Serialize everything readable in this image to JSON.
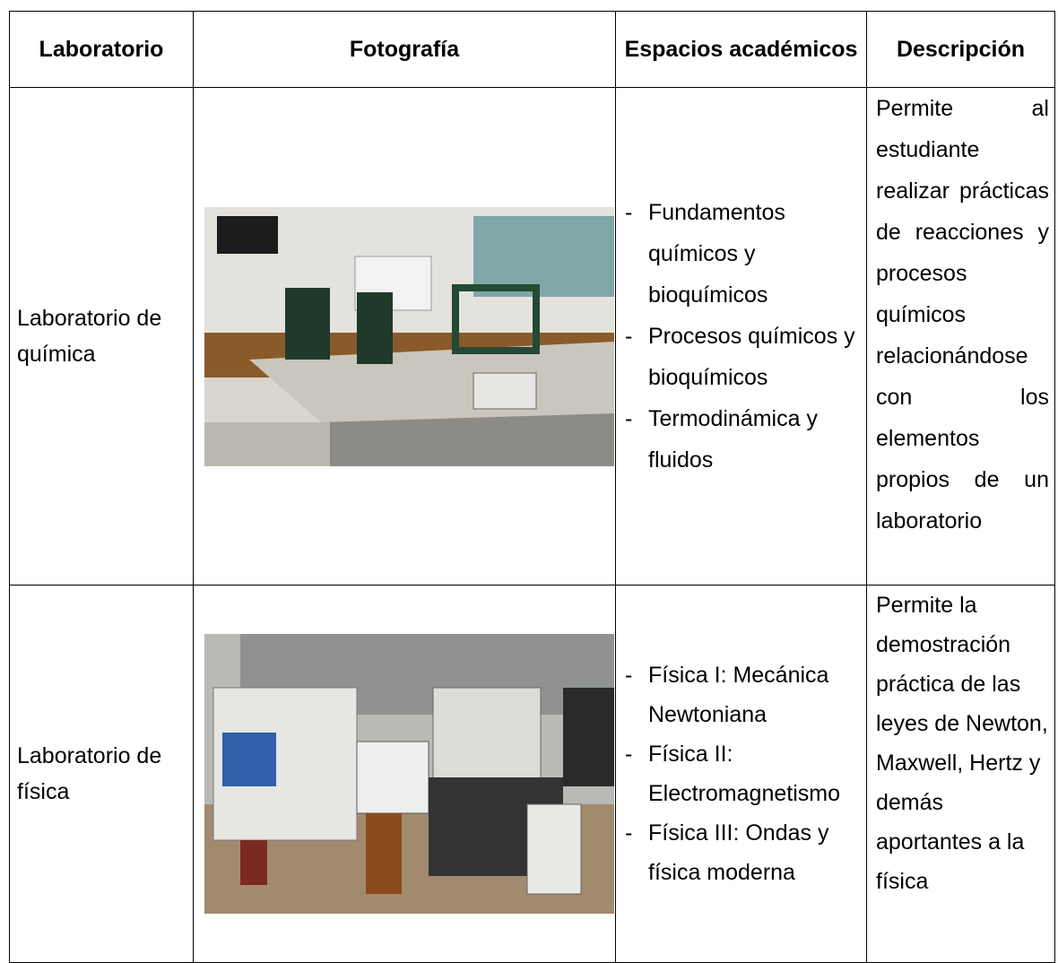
{
  "table": {
    "header": [
      "Laboratorio",
      "Fotografía",
      "Espacios académicos",
      "Descripción"
    ],
    "rows": [
      {
        "laboratory": "Laboratorio de química",
        "courses": [
          "Fundamentos químicos y bioquímicos",
          "Procesos químicos y bioquímicos",
          "Termodinámica y fluidos"
        ],
        "description": "Permite al estudiante realizar prácticas de reacciones y procesos químicos relacionándose con los elementos propios de un laboratorio"
      },
      {
        "laboratory": "Laboratorio de física",
        "courses": [
          "Física I: Mecánica Newtoniana",
          "Física II: Electromagnetismo",
          "Física III: Ondas y física moderna"
        ],
        "description": "Permite la demostración práctica de las leyes de Newton, Maxwell, Hertz y demás aportantes a la física"
      }
    ]
  }
}
